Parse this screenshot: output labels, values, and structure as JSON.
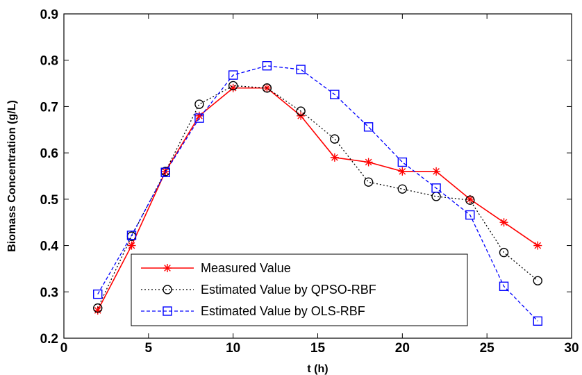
{
  "chart_data": {
    "type": "line",
    "title": "",
    "xlabel": "t (h)",
    "ylabel": "Biomass Concentration (g/L)",
    "xlim": [
      0,
      30
    ],
    "ylim": [
      0.2,
      0.9
    ],
    "x_ticks": [
      0,
      5,
      10,
      15,
      20,
      25,
      30
    ],
    "y_ticks": [
      0.2,
      0.3,
      0.4,
      0.5,
      0.6,
      0.7,
      0.8,
      0.9
    ],
    "grid": false,
    "legend_position": "bottom-left",
    "x": [
      2,
      4,
      6,
      8,
      10,
      12,
      14,
      16,
      18,
      20,
      22,
      24,
      26,
      28
    ],
    "series": [
      {
        "name": "Measured Value",
        "color": "#ff0000",
        "line_style": "solid",
        "marker": "asterisk",
        "values": [
          0.26,
          0.4,
          0.56,
          0.68,
          0.74,
          0.74,
          0.68,
          0.59,
          0.58,
          0.56,
          0.56,
          0.5,
          0.45,
          0.4
        ]
      },
      {
        "name": "Estimated Value by QPSO-RBF",
        "color": "#000000",
        "line_style": "dotted",
        "marker": "circle",
        "values": [
          0.265,
          0.42,
          0.56,
          0.705,
          0.745,
          0.74,
          0.69,
          0.63,
          0.537,
          0.522,
          0.506,
          0.498,
          0.385,
          0.324
        ]
      },
      {
        "name": "Estimated Value by OLS-RBF",
        "color": "#0000ff",
        "line_style": "dashed",
        "marker": "square",
        "values": [
          0.295,
          0.422,
          0.558,
          0.675,
          0.768,
          0.788,
          0.78,
          0.726,
          0.656,
          0.58,
          0.524,
          0.466,
          0.312,
          0.237
        ]
      }
    ]
  }
}
